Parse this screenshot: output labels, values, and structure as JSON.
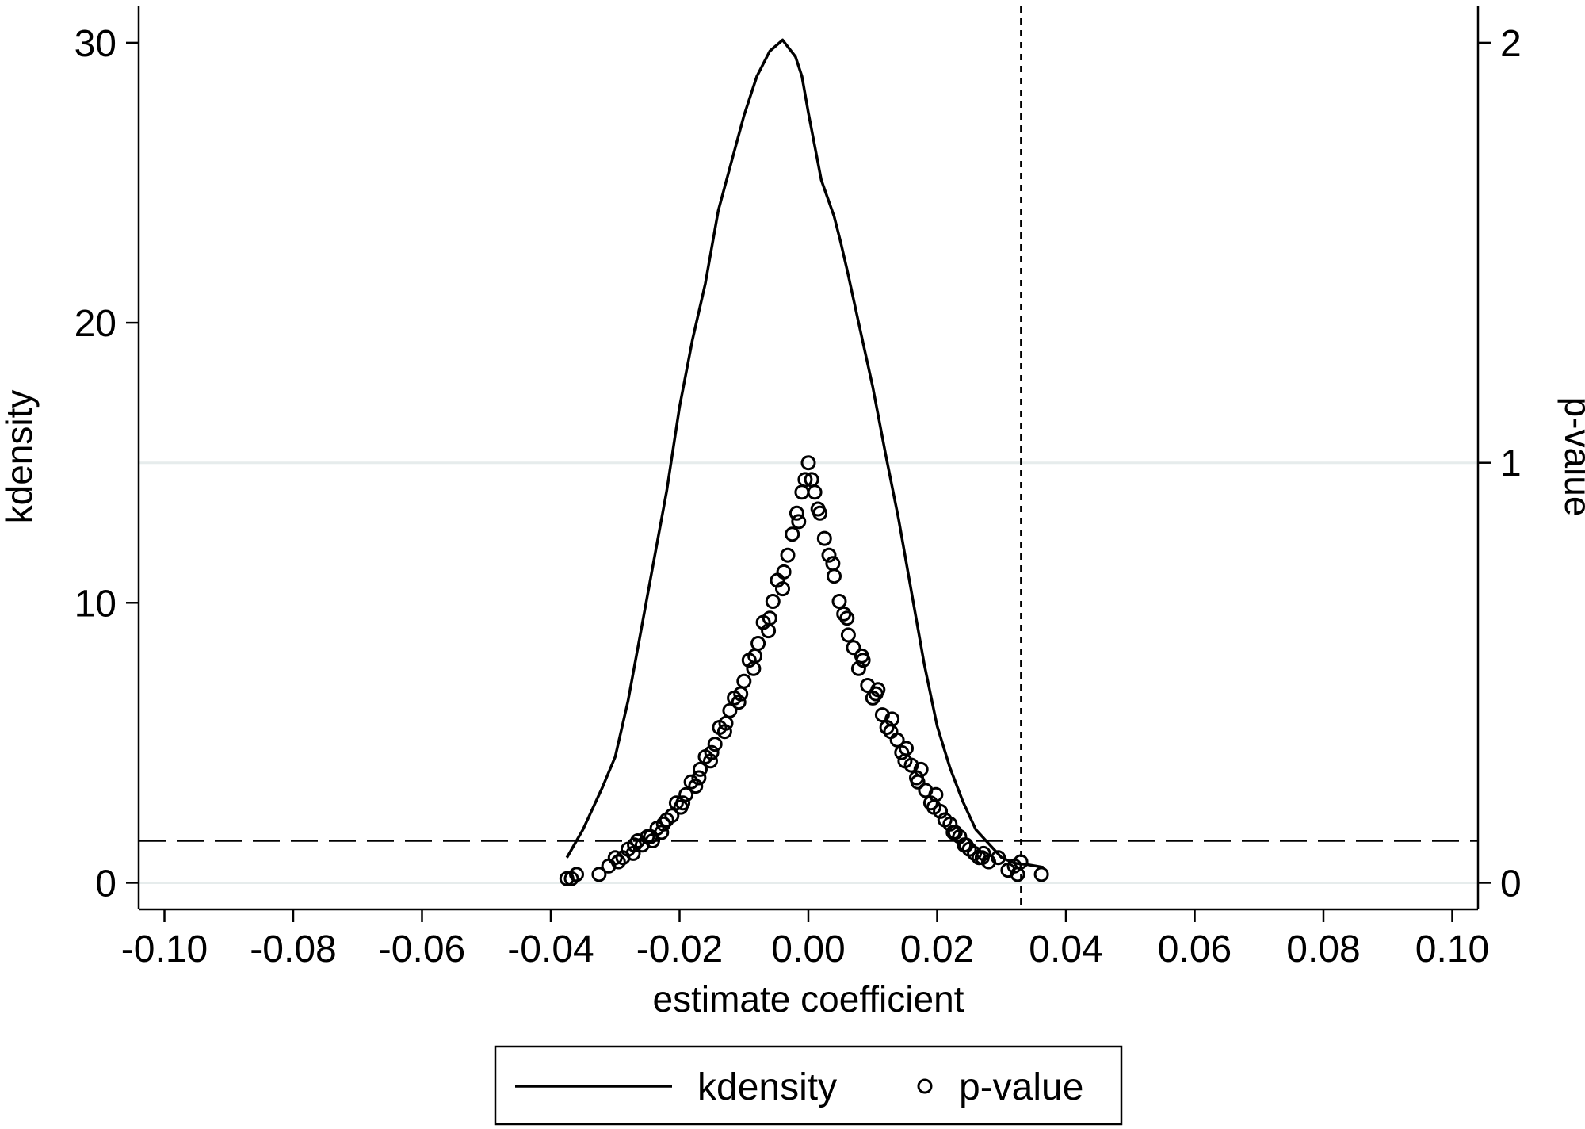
{
  "chart_data": {
    "type": "line",
    "title": "",
    "xlabel": "estimate coefficient",
    "ylabel": "kdensity",
    "y2label": "p-value",
    "xlim": [
      -0.104,
      0.104
    ],
    "ylim": [
      -0.95,
      31.3
    ],
    "y2lim": [
      -0.0633,
      2.0867
    ],
    "x_ticks": [
      -0.1,
      -0.08,
      -0.06,
      -0.04,
      -0.02,
      0.0,
      0.02,
      0.04,
      0.06,
      0.08,
      0.1
    ],
    "x_tick_labels": [
      "-0.10",
      "-0.08",
      "-0.06",
      "-0.04",
      "-0.02",
      "0.00",
      "0.02",
      "0.04",
      "0.06",
      "0.08",
      "0.10"
    ],
    "y_ticks": [
      0,
      10,
      20,
      30
    ],
    "y_tick_labels": [
      "0",
      "10",
      "20",
      "30"
    ],
    "y2_ticks": [
      0,
      1,
      2
    ],
    "y2_tick_labels": [
      "0",
      "1",
      "2"
    ],
    "grid": {
      "horizontal_y2": [
        0,
        1
      ],
      "color": "#e6ecec"
    },
    "reference_lines": {
      "vertical_x": 0.033,
      "vertical_style": "short-dash",
      "horizontal_y2": 0.1,
      "horizontal_style": "long-dash"
    },
    "legend": {
      "placement": "bottom-center",
      "entries": [
        "kdensity",
        "p-value"
      ]
    },
    "series": [
      {
        "name": "kdensity",
        "kind": "line",
        "axis": "left",
        "x": [
          -0.0375,
          -0.035,
          -0.032,
          -0.03,
          -0.028,
          -0.026,
          -0.024,
          -0.022,
          -0.02,
          -0.018,
          -0.016,
          -0.014,
          -0.012,
          -0.01,
          -0.008,
          -0.006,
          -0.004,
          -0.002,
          -0.001,
          0.0,
          0.002,
          0.004,
          0.005,
          0.006,
          0.008,
          0.01,
          0.012,
          0.014,
          0.016,
          0.018,
          0.02,
          0.022,
          0.024,
          0.026,
          0.028,
          0.03,
          0.032,
          0.034,
          0.0365
        ],
        "y": [
          0.9,
          1.9,
          3.4,
          4.5,
          6.5,
          9.0,
          11.5,
          14.0,
          17.0,
          19.4,
          21.4,
          24.0,
          25.7,
          27.4,
          28.8,
          29.7,
          30.1,
          29.5,
          28.8,
          27.5,
          25.1,
          23.8,
          22.9,
          21.9,
          19.8,
          17.7,
          15.3,
          13.0,
          10.4,
          7.8,
          5.6,
          4.1,
          2.9,
          1.9,
          1.4,
          0.9,
          0.7,
          0.65,
          0.55
        ]
      },
      {
        "name": "p-value",
        "kind": "scatter",
        "axis": "right",
        "marker": "hollow-circle",
        "x": [
          -0.0375,
          -0.0368,
          -0.036,
          -0.0325,
          -0.031,
          -0.0295,
          -0.0288,
          -0.028,
          -0.0272,
          -0.0265,
          -0.0258,
          -0.025,
          -0.0242,
          -0.0235,
          -0.0228,
          -0.022,
          -0.0212,
          -0.0205,
          -0.0198,
          -0.019,
          -0.0182,
          -0.0175,
          -0.0168,
          -0.016,
          -0.0152,
          -0.0145,
          -0.0138,
          -0.013,
          -0.0122,
          -0.0115,
          -0.0108,
          -0.01,
          -0.0092,
          -0.0085,
          -0.0078,
          -0.007,
          -0.0062,
          -0.0055,
          -0.0048,
          -0.004,
          -0.0032,
          -0.0025,
          -0.0018,
          -0.001,
          -0.0005,
          0.0,
          0.0005,
          0.001,
          0.0018,
          0.0025,
          0.0032,
          0.004,
          0.0048,
          0.0055,
          0.0062,
          0.007,
          0.0078,
          0.0085,
          0.0092,
          0.01,
          0.0108,
          0.0115,
          0.0122,
          0.013,
          0.0138,
          0.0145,
          0.0152,
          0.016,
          0.0168,
          0.0175,
          0.0182,
          0.019,
          0.0198,
          0.0205,
          0.0212,
          0.022,
          0.0228,
          0.0235,
          0.0242,
          0.025,
          0.0258,
          0.0265,
          0.0272,
          0.028,
          0.0295,
          0.031,
          0.032,
          0.0325,
          0.033,
          0.0362,
          -0.03,
          -0.027,
          -0.0245,
          -0.0225,
          -0.0195,
          -0.017,
          -0.015,
          -0.0128,
          -0.0105,
          -0.0083,
          -0.006,
          -0.0038,
          -0.0015,
          0.0015,
          0.0038,
          0.006,
          0.0083,
          0.0105,
          0.0128,
          0.015,
          0.017,
          0.0195,
          0.0225,
          0.0245,
          0.027
        ],
        "y": [
          0.01,
          0.01,
          0.02,
          0.02,
          0.04,
          0.05,
          0.06,
          0.08,
          0.07,
          0.1,
          0.09,
          0.11,
          0.1,
          0.13,
          0.12,
          0.15,
          0.16,
          0.19,
          0.18,
          0.21,
          0.24,
          0.23,
          0.27,
          0.3,
          0.29,
          0.33,
          0.37,
          0.36,
          0.41,
          0.44,
          0.43,
          0.48,
          0.53,
          0.51,
          0.57,
          0.62,
          0.6,
          0.67,
          0.72,
          0.7,
          0.78,
          0.83,
          0.88,
          0.93,
          0.96,
          1.0,
          0.96,
          0.93,
          0.88,
          0.82,
          0.78,
          0.73,
          0.67,
          0.64,
          0.59,
          0.56,
          0.51,
          0.53,
          0.47,
          0.44,
          0.46,
          0.4,
          0.37,
          0.39,
          0.34,
          0.31,
          0.32,
          0.28,
          0.25,
          0.27,
          0.22,
          0.19,
          0.21,
          0.17,
          0.15,
          0.14,
          0.12,
          0.11,
          0.09,
          0.08,
          0.07,
          0.06,
          0.07,
          0.05,
          0.06,
          0.03,
          0.04,
          0.02,
          0.05,
          0.02,
          0.06,
          0.09,
          0.11,
          0.14,
          0.19,
          0.25,
          0.31,
          0.38,
          0.45,
          0.54,
          0.63,
          0.74,
          0.86,
          0.89,
          0.76,
          0.63,
          0.54,
          0.45,
          0.36,
          0.29,
          0.24,
          0.18,
          0.12,
          0.09,
          0.06
        ]
      }
    ]
  }
}
